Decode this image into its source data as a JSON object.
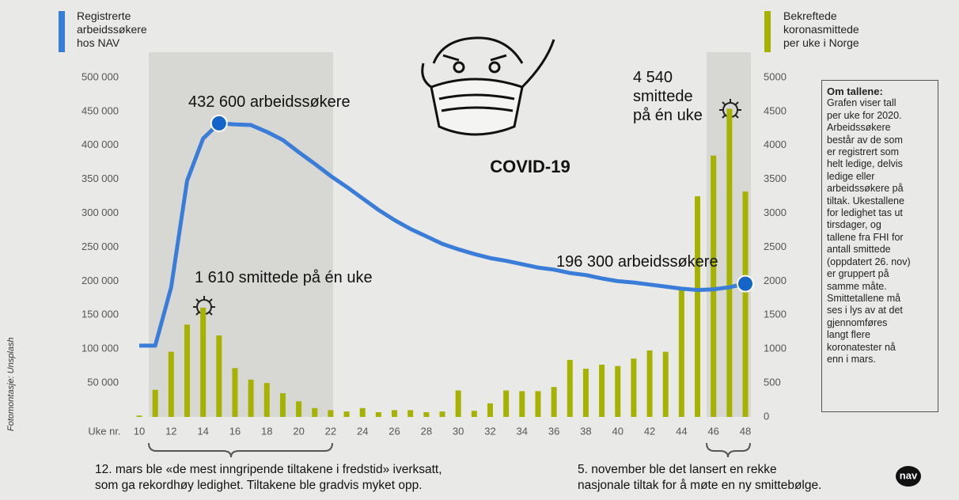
{
  "chart_data": {
    "type": "combo",
    "x_label": "Uke nr.",
    "x": [
      10,
      11,
      12,
      13,
      14,
      15,
      16,
      17,
      18,
      19,
      20,
      21,
      22,
      23,
      24,
      25,
      26,
      27,
      28,
      29,
      30,
      31,
      32,
      33,
      34,
      35,
      36,
      37,
      38,
      39,
      40,
      41,
      42,
      43,
      44,
      45,
      46,
      47,
      48
    ],
    "xlim": [
      10,
      48
    ],
    "xticks": [
      10,
      12,
      14,
      16,
      18,
      20,
      22,
      24,
      26,
      28,
      30,
      32,
      34,
      36,
      38,
      40,
      42,
      44,
      46,
      48
    ],
    "ylim": [
      0,
      500000
    ],
    "yticks": [
      {
        "value": 50000,
        "label": "50 000"
      },
      {
        "value": 100000,
        "label": "100 000"
      },
      {
        "value": 150000,
        "label": "150 000"
      },
      {
        "value": 200000,
        "label": "200 000"
      },
      {
        "value": 250000,
        "label": "250 000"
      },
      {
        "value": 300000,
        "label": "300 000"
      },
      {
        "value": 350000,
        "label": "350 000"
      },
      {
        "value": 400000,
        "label": "400 000"
      },
      {
        "value": 450000,
        "label": "450 000"
      },
      {
        "value": 500000,
        "label": "500 000"
      }
    ],
    "y2lim": [
      0,
      5000
    ],
    "y2ticks": [
      0,
      500,
      1000,
      1500,
      2000,
      2500,
      3000,
      3500,
      4000,
      4500,
      5000
    ],
    "series": [
      {
        "name": "Registrerte arbeidssøkere hos NAV",
        "type": "line",
        "color": "#3a7dd8",
        "values": [
          105000,
          105000,
          191000,
          348000,
          410000,
          432600,
          431000,
          430000,
          420000,
          408000,
          390000,
          373000,
          355000,
          339000,
          322000,
          305000,
          290000,
          277000,
          266000,
          255000,
          247000,
          240000,
          234000,
          230000,
          225000,
          220000,
          217000,
          212000,
          209000,
          204000,
          200000,
          198000,
          195000,
          192000,
          189000,
          187000,
          188000,
          191000,
          196300
        ]
      },
      {
        "name": "Bekreftede koronasmittede per uke i Norge",
        "type": "bar",
        "axis": "y2",
        "color": "#a5b300",
        "values": [
          20,
          400,
          960,
          1360,
          1610,
          1200,
          720,
          550,
          500,
          350,
          230,
          130,
          100,
          80,
          130,
          70,
          100,
          100,
          70,
          80,
          390,
          90,
          200,
          390,
          380,
          380,
          440,
          840,
          710,
          770,
          750,
          860,
          980,
          960,
          1890,
          3250,
          3850,
          4540,
          3320
        ]
      }
    ],
    "annotations": [
      "432 600 arbeidssøkere",
      "1 610 smittede på én uke",
      "196 300 arbeidssøkere",
      "4 540 smittede på én uke"
    ],
    "notes": [
      [
        "12. mars ble «de mest inngripende tiltakene i fredstid» iverksatt,",
        "som ga rekordhøy ledighet. Tiltakene ble gradvis myket opp."
      ],
      [
        "5. november ble det lansert en rekke",
        "nasjonale tiltak for å møte en ny smittebølge."
      ]
    ],
    "info_box": {
      "title": "Om tallene:",
      "lines": [
        "Grafen viser tall",
        "per uke for 2020.",
        "Arbeidssøkere",
        "består av de som",
        "er registrert som",
        "helt ledige, delvis",
        "ledige eller",
        "arbeidssøkere på",
        "tiltak. Ukestallene",
        "for ledighet tas ut",
        "tirsdager, og",
        "tallene fra FHI for",
        "antall smittede",
        "(oppdatert 26. nov)",
        "er gruppert på",
        "samme måte.",
        "Smittetallene må",
        "ses i lys av at det",
        "gjennomføres",
        "langt flere",
        "koronatester nå",
        "enn i mars."
      ]
    },
    "image_text": "COVID-19",
    "credit": "Fotomontasje: Unsplash",
    "logo": "nav"
  }
}
